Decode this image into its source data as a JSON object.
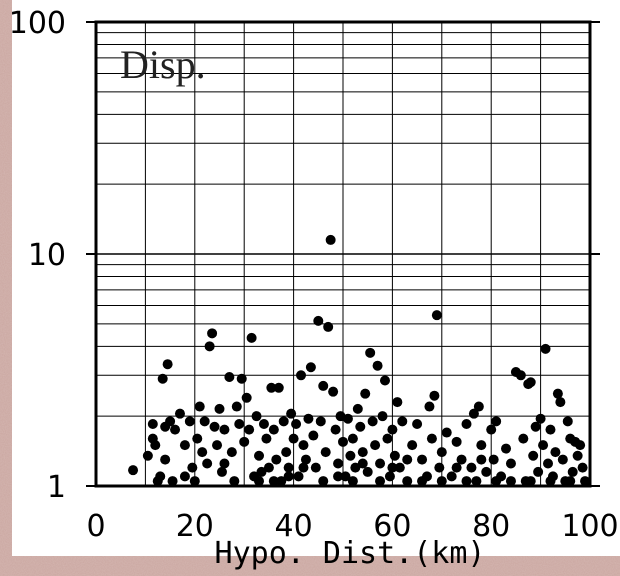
{
  "chart_data": {
    "type": "scatter",
    "panel_label": "Disp.",
    "xlabel": "Hypo. Dist.(km)",
    "ylabel": "",
    "xlim": [
      0,
      100
    ],
    "ylim": [
      1,
      100
    ],
    "y_scale": "log",
    "x_ticks": [
      "0",
      "20",
      "40",
      "60",
      "80",
      "100"
    ],
    "y_ticks": [
      "1",
      "10",
      "100"
    ],
    "grid": true,
    "marker_color": "#000000",
    "points": [
      [
        7.5,
        1.17
      ],
      [
        10.5,
        1.35
      ],
      [
        11.5,
        1.85
      ],
      [
        11.5,
        1.6
      ],
      [
        12,
        1.5
      ],
      [
        12.5,
        1.05
      ],
      [
        13,
        1.1
      ],
      [
        13.5,
        2.9
      ],
      [
        14,
        1.8
      ],
      [
        14,
        1.3
      ],
      [
        14.5,
        3.35
      ],
      [
        15,
        1.9
      ],
      [
        15.5,
        1.05
      ],
      [
        16,
        1.75
      ],
      [
        17,
        2.05
      ],
      [
        18,
        1.5
      ],
      [
        19,
        1.9
      ],
      [
        19.5,
        1.2
      ],
      [
        20,
        1.05
      ],
      [
        20.5,
        1.6
      ],
      [
        21,
        2.2
      ],
      [
        21.5,
        1.4
      ],
      [
        22,
        1.9
      ],
      [
        22.5,
        1.25
      ],
      [
        23,
        4.0
      ],
      [
        23.5,
        4.55
      ],
      [
        24,
        1.8
      ],
      [
        24.5,
        1.5
      ],
      [
        25,
        2.15
      ],
      [
        25.5,
        1.15
      ],
      [
        26,
        1.75
      ],
      [
        27,
        2.95
      ],
      [
        27.5,
        1.4
      ],
      [
        28,
        1.05
      ],
      [
        28.5,
        2.2
      ],
      [
        29,
        1.85
      ],
      [
        29.5,
        2.9
      ],
      [
        30,
        1.55
      ],
      [
        30.5,
        2.4
      ],
      [
        31,
        1.75
      ],
      [
        31.5,
        4.35
      ],
      [
        32,
        1.1
      ],
      [
        32.5,
        2.0
      ],
      [
        33,
        1.35
      ],
      [
        33.5,
        1.15
      ],
      [
        34,
        1.85
      ],
      [
        34.5,
        1.6
      ],
      [
        35,
        1.2
      ],
      [
        35.5,
        2.65
      ],
      [
        36,
        1.75
      ],
      [
        36.5,
        1.3
      ],
      [
        37,
        2.65
      ],
      [
        37.5,
        1.05
      ],
      [
        38,
        1.9
      ],
      [
        38.5,
        1.4
      ],
      [
        39,
        1.2
      ],
      [
        39.5,
        2.05
      ],
      [
        40,
        1.6
      ],
      [
        40.5,
        1.85
      ],
      [
        41,
        1.1
      ],
      [
        41.5,
        3.0
      ],
      [
        42,
        1.5
      ],
      [
        42.5,
        1.3
      ],
      [
        43,
        1.95
      ],
      [
        43.5,
        3.25
      ],
      [
        44,
        1.65
      ],
      [
        44.5,
        1.2
      ],
      [
        45,
        5.15
      ],
      [
        45.5,
        1.9
      ],
      [
        46,
        2.7
      ],
      [
        46.5,
        1.4
      ],
      [
        47,
        4.85
      ],
      [
        47.5,
        11.5
      ],
      [
        48,
        2.55
      ],
      [
        48.5,
        1.75
      ],
      [
        49,
        1.25
      ],
      [
        49.5,
        2.0
      ],
      [
        50,
        1.55
      ],
      [
        50.5,
        1.1
      ],
      [
        51,
        1.95
      ],
      [
        51.5,
        1.35
      ],
      [
        52,
        1.6
      ],
      [
        52.5,
        1.2
      ],
      [
        53,
        2.15
      ],
      [
        53.5,
        1.8
      ],
      [
        54,
        1.4
      ],
      [
        54.5,
        2.5
      ],
      [
        55,
        1.15
      ],
      [
        55.5,
        3.75
      ],
      [
        56,
        1.9
      ],
      [
        56.5,
        1.5
      ],
      [
        57,
        3.3
      ],
      [
        57.5,
        1.25
      ],
      [
        58,
        2.0
      ],
      [
        58.5,
        2.85
      ],
      [
        59,
        1.6
      ],
      [
        59.5,
        1.1
      ],
      [
        60,
        1.75
      ],
      [
        60.5,
        1.35
      ],
      [
        61,
        2.3
      ],
      [
        61.5,
        1.2
      ],
      [
        62,
        1.9
      ],
      [
        63,
        1.05
      ],
      [
        64,
        1.5
      ],
      [
        65,
        1.85
      ],
      [
        66,
        1.3
      ],
      [
        67,
        1.1
      ],
      [
        67.5,
        2.2
      ],
      [
        68,
        1.6
      ],
      [
        68.5,
        2.45
      ],
      [
        69,
        5.45
      ],
      [
        69.5,
        1.2
      ],
      [
        70,
        1.4
      ],
      [
        71,
        1.7
      ],
      [
        72,
        1.1
      ],
      [
        73,
        1.55
      ],
      [
        74,
        1.3
      ],
      [
        75,
        1.85
      ],
      [
        76,
        1.2
      ],
      [
        76.5,
        2.05
      ],
      [
        77,
        1.05
      ],
      [
        77.5,
        2.2
      ],
      [
        78,
        1.5
      ],
      [
        79,
        1.15
      ],
      [
        80,
        1.75
      ],
      [
        80.5,
        1.3
      ],
      [
        81,
        1.9
      ],
      [
        82,
        1.1
      ],
      [
        83,
        1.45
      ],
      [
        84,
        1.25
      ],
      [
        85,
        3.1
      ],
      [
        86,
        3.0
      ],
      [
        86.5,
        1.6
      ],
      [
        87,
        1.05
      ],
      [
        87.5,
        2.75
      ],
      [
        88,
        2.8
      ],
      [
        88.5,
        1.35
      ],
      [
        89,
        1.8
      ],
      [
        89.5,
        1.15
      ],
      [
        90,
        1.95
      ],
      [
        90.5,
        1.5
      ],
      [
        91,
        3.9
      ],
      [
        91.5,
        1.25
      ],
      [
        92,
        1.75
      ],
      [
        92.5,
        1.1
      ],
      [
        93,
        1.4
      ],
      [
        93.5,
        2.5
      ],
      [
        94,
        2.3
      ],
      [
        94.5,
        1.3
      ],
      [
        95,
        1.05
      ],
      [
        95.5,
        1.9
      ],
      [
        96,
        1.6
      ],
      [
        96.5,
        1.15
      ],
      [
        97,
        1.55
      ],
      [
        97.5,
        1.35
      ],
      [
        98,
        1.5
      ],
      [
        98.5,
        1.2
      ],
      [
        99,
        1.05
      ],
      [
        18,
        1.1
      ],
      [
        26,
        1.25
      ],
      [
        33,
        1.05
      ],
      [
        36,
        1.05
      ],
      [
        39,
        1.1
      ],
      [
        42,
        1.2
      ],
      [
        46,
        1.05
      ],
      [
        49,
        1.1
      ],
      [
        52,
        1.05
      ],
      [
        54,
        1.25
      ],
      [
        57.5,
        1.05
      ],
      [
        60,
        1.2
      ],
      [
        63,
        1.3
      ],
      [
        66,
        1.05
      ],
      [
        70,
        1.05
      ],
      [
        73,
        1.2
      ],
      [
        75,
        1.05
      ],
      [
        78,
        1.3
      ],
      [
        81,
        1.05
      ],
      [
        84,
        1.05
      ],
      [
        88,
        1.05
      ],
      [
        92,
        1.05
      ],
      [
        96,
        1.05
      ]
    ]
  }
}
